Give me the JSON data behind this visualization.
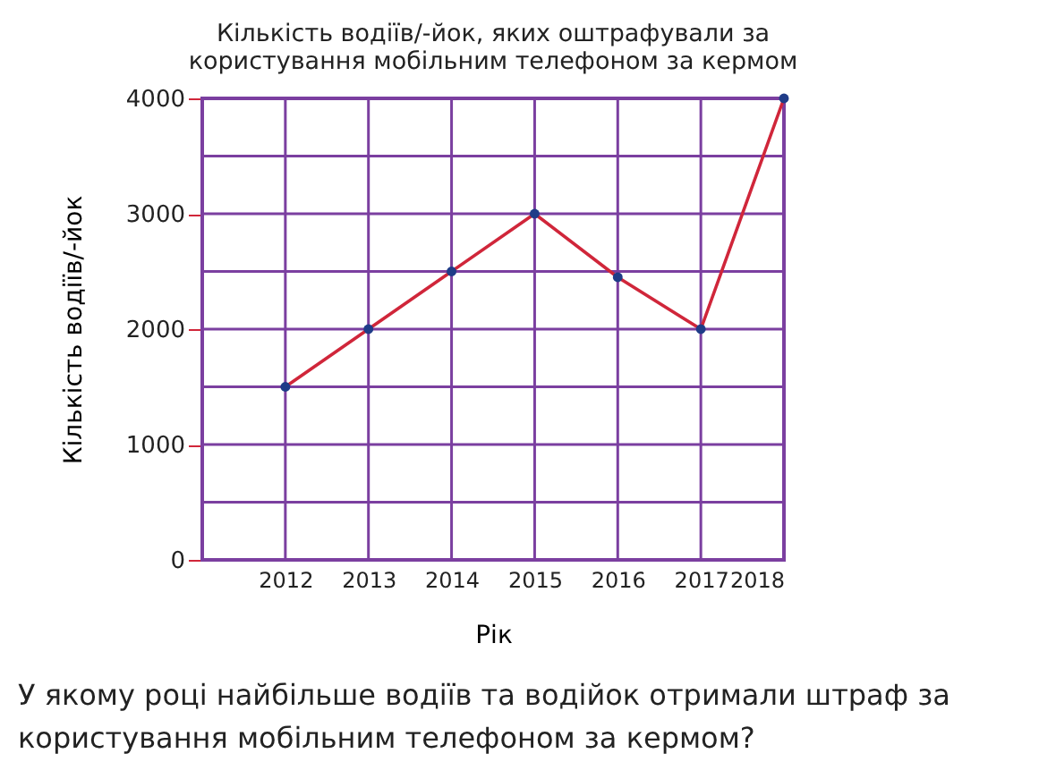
{
  "chart_data": {
    "type": "line",
    "title": [
      "Кількість водіїв/-йок, яких оштрафували за",
      "користування мобільним телефоном за кермом"
    ],
    "xlabel": "Рік",
    "ylabel": "Кількість водіїв/-йок",
    "x": [
      2012,
      2013,
      2014,
      2015,
      2016,
      2017,
      2018
    ],
    "series": [
      {
        "color": "#d0263a",
        "values": [
          1500,
          2000,
          2500,
          3000,
          2450,
          2000,
          4000
        ]
      }
    ],
    "marker": "circle",
    "line_style": "solid",
    "grid": true,
    "xlim": [
      2011,
      2018
    ],
    "xticks": [
      2012,
      2013,
      2014,
      2015,
      2016,
      2017,
      2018
    ],
    "ylim": [
      0,
      4000
    ],
    "yticks": [
      0,
      {
        "value": 500,
        "label": null
      },
      1000,
      {
        "value": 1500,
        "label": null
      },
      2000,
      {
        "value": 2500,
        "label": null
      },
      3000,
      {
        "value": 3500,
        "label": null
      },
      4000
    ],
    "annotations": [
      "У якому році найбільше водіїв та водійок отримали штраф за користування мобільним телефоном за кермом?"
    ]
  }
}
